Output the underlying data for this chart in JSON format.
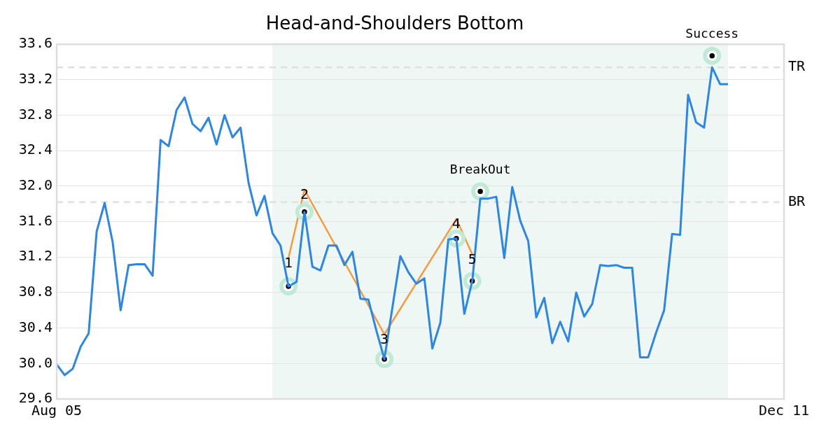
{
  "chart_data": {
    "type": "line",
    "title": "Head-and-Shoulders Bottom",
    "categories": [
      "Aug 05",
      null,
      null,
      null,
      null,
      null,
      null,
      null,
      null,
      null,
      null,
      null,
      null,
      null,
      null,
      null,
      null,
      null,
      null,
      null,
      null,
      null,
      null,
      null,
      null,
      null,
      null,
      null,
      null,
      null,
      null,
      null,
      null,
      null,
      null,
      null,
      null,
      null,
      null,
      null,
      null,
      null,
      null,
      null,
      null,
      null,
      null,
      null,
      null,
      null,
      null,
      null,
      null,
      null,
      null,
      null,
      null,
      null,
      null,
      null,
      null,
      null,
      null,
      null,
      null,
      null,
      null,
      null,
      null,
      null,
      null,
      null,
      null,
      null,
      null,
      null,
      null,
      null,
      null,
      null,
      null,
      null,
      null,
      null,
      null,
      null,
      null,
      null,
      null,
      null,
      null,
      "Dec 11"
    ],
    "series": [
      {
        "type": "line",
        "color": "#2b86e8",
        "values": [
          29.99,
          29.87,
          29.94,
          30.19,
          30.34,
          31.49,
          31.81,
          31.37,
          30.6,
          31.11,
          31.12,
          31.12,
          30.99,
          32.52,
          32.45,
          32.86,
          33.0,
          32.7,
          32.62,
          32.77,
          32.47,
          32.8,
          32.55,
          32.66,
          32.04,
          31.67,
          31.89,
          31.47,
          31.33,
          30.87,
          30.92,
          31.71,
          31.09,
          31.05,
          31.33,
          31.33,
          31.11,
          31.26,
          30.73,
          30.72,
          30.37,
          30.05,
          30.63,
          31.21,
          31.03,
          30.9,
          30.96,
          30.17,
          30.46,
          31.4,
          31.41,
          30.56,
          30.93,
          31.86,
          31.86,
          31.88,
          31.19,
          31.99,
          31.61,
          31.38,
          30.52,
          30.74,
          30.23,
          30.47,
          30.25,
          30.8,
          30.53,
          30.67,
          31.11,
          31.1,
          31.11,
          31.08,
          31.08,
          30.07,
          30.07,
          30.35,
          30.6,
          31.46,
          31.45,
          33.03,
          32.72,
          32.66,
          33.34,
          33.15,
          33.15,
          null,
          null,
          null,
          null,
          null,
          null,
          null
        ]
      },
      {
        "type": "line",
        "color": "#f79a3e",
        "values": [
          null,
          null,
          null,
          null,
          null,
          null,
          null,
          null,
          null,
          null,
          null,
          null,
          null,
          null,
          null,
          null,
          null,
          null,
          null,
          null,
          null,
          null,
          null,
          null,
          null,
          null,
          null,
          null,
          null,
          31.19,
          null,
          31.96,
          null,
          null,
          null,
          null,
          null,
          null,
          null,
          null,
          null,
          30.33,
          null,
          null,
          null,
          null,
          null,
          null,
          null,
          null,
          31.63,
          null,
          31.23,
          null,
          null,
          null,
          null,
          null,
          null,
          null,
          null,
          null,
          null,
          null,
          null,
          null,
          null,
          null,
          null,
          null,
          null,
          null,
          null,
          null,
          null,
          null,
          null,
          null,
          null,
          null,
          null,
          null,
          null,
          null,
          null,
          null,
          null,
          null,
          null,
          null,
          null,
          null
        ]
      },
      {
        "type": "scatter",
        "color": "#000000",
        "marker": "circle",
        "values": [
          null,
          null,
          null,
          null,
          null,
          null,
          null,
          null,
          null,
          null,
          null,
          null,
          null,
          null,
          null,
          null,
          null,
          null,
          null,
          null,
          null,
          null,
          null,
          null,
          null,
          null,
          null,
          null,
          null,
          30.87,
          null,
          31.71,
          null,
          null,
          null,
          null,
          null,
          null,
          null,
          null,
          null,
          30.05,
          null,
          null,
          null,
          null,
          null,
          null,
          null,
          null,
          31.41,
          null,
          30.93,
          31.94,
          null,
          null,
          null,
          null,
          null,
          null,
          null,
          null,
          null,
          null,
          null,
          null,
          null,
          null,
          null,
          null,
          null,
          null,
          null,
          null,
          null,
          null,
          null,
          null,
          null,
          null,
          null,
          null,
          33.47,
          null,
          null,
          null,
          null,
          null,
          null,
          null,
          null,
          null
        ],
        "value_labels": [
          null,
          null,
          null,
          null,
          null,
          null,
          null,
          null,
          null,
          null,
          null,
          null,
          null,
          null,
          null,
          null,
          null,
          null,
          null,
          null,
          null,
          null,
          null,
          null,
          null,
          null,
          null,
          null,
          null,
          null,
          null,
          null,
          null,
          null,
          null,
          null,
          null,
          null,
          null,
          null,
          null,
          null,
          null,
          null,
          null,
          null,
          null,
          null,
          null,
          null,
          null,
          null,
          null,
          "BreakOut",
          null,
          null,
          null,
          null,
          null,
          null,
          null,
          null,
          null,
          null,
          null,
          null,
          null,
          null,
          null,
          null,
          null,
          null,
          null,
          null,
          null,
          null,
          null,
          null,
          null,
          null,
          null,
          null,
          "Success",
          null,
          null,
          null,
          null,
          null,
          null,
          null,
          null,
          null
        ]
      }
    ],
    "ylim": [
      29.6,
      33.6
    ],
    "yticks": [
      29.6,
      {
        "value": 30,
        "label": "30.0"
      },
      30.4,
      30.8,
      31.2,
      31.6,
      {
        "value": 32,
        "label": "32.0"
      },
      32.4,
      32.8,
      33.2,
      33.6
    ],
    "grid": "y",
    "ref_lines": [
      {
        "axis": "y",
        "value": 33.34,
        "label": "TR",
        "color": "#e0e0e0",
        "line_style": "dashed"
      },
      {
        "axis": "y",
        "value": 31.82,
        "label": "BR",
        "color": "#e0e0e0",
        "line_style": "dashed"
      }
    ],
    "annotations": [
      {
        "text": "1",
        "y": 31.19
      },
      {
        "text": "2",
        "y": 31.96
      },
      {
        "text": "3",
        "y": 30.33
      },
      {
        "text": "4",
        "y": 31.63
      },
      {
        "text": "5",
        "y": 31.23
      }
    ]
  }
}
